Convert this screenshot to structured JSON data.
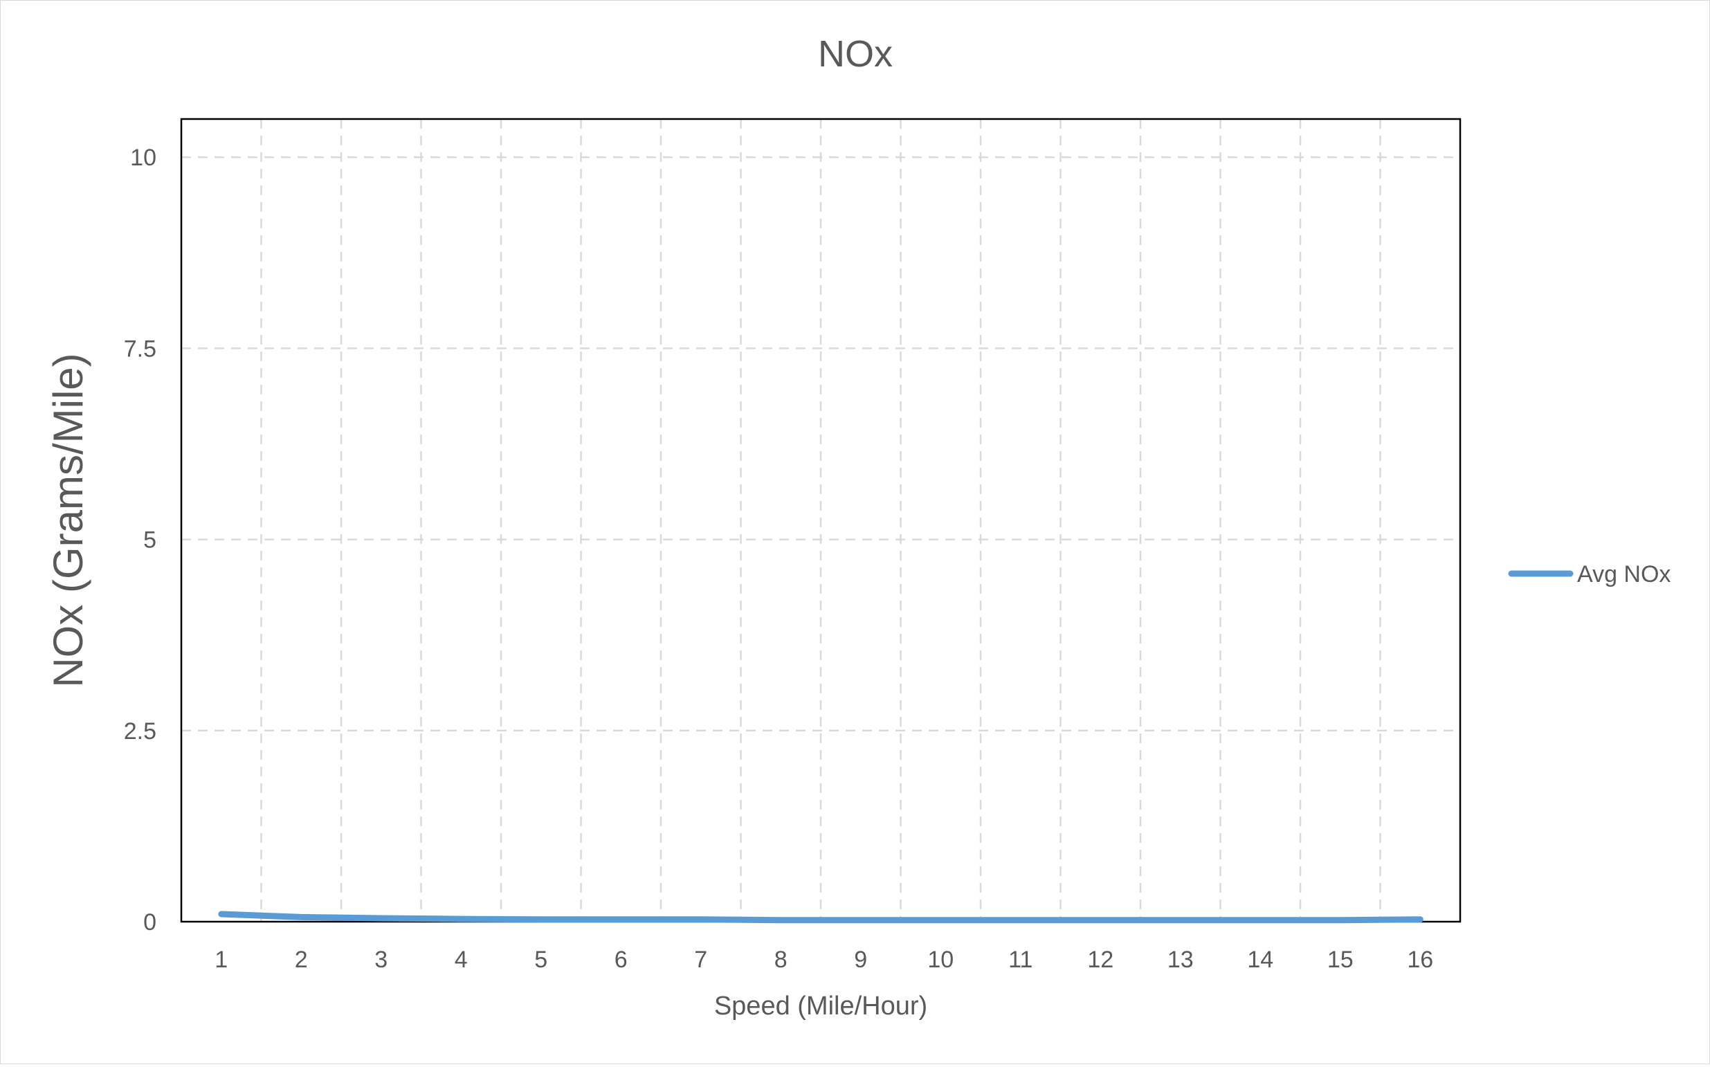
{
  "chart_data": {
    "type": "line",
    "title": "NOx",
    "xlabel": "Speed (Mile/Hour)",
    "ylabel": "NOx (Grams/Mile)",
    "x": [
      1,
      2,
      3,
      4,
      5,
      6,
      7,
      8,
      9,
      10,
      11,
      12,
      13,
      14,
      15,
      16
    ],
    "x_tick_labels": [
      "1",
      "2",
      "3",
      "4",
      "5",
      "6",
      "7",
      "8",
      "9",
      "10",
      "11",
      "12",
      "13",
      "14",
      "15",
      "16"
    ],
    "ylim": [
      0,
      10.5
    ],
    "y_ticks": [
      0,
      2.5,
      5,
      7.5,
      10
    ],
    "y_tick_labels": [
      "0",
      "2.5",
      "5",
      "7.5",
      "10"
    ],
    "grid": true,
    "grid_style": "dashed",
    "legend_position": "right",
    "series": [
      {
        "name": "Avg NOx",
        "color": "#5b9bd5",
        "values": [
          0.1,
          0.06,
          0.045,
          0.035,
          0.03,
          0.03,
          0.03,
          0.02,
          0.02,
          0.02,
          0.02,
          0.02,
          0.02,
          0.02,
          0.02,
          0.03
        ]
      }
    ]
  }
}
